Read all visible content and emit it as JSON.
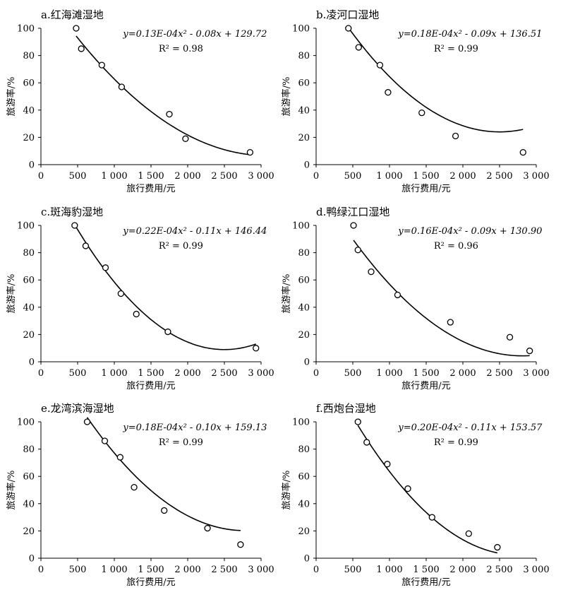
{
  "chart_data": [
    {
      "type": "scatter",
      "title": "a.红海滩湿地",
      "xlabel": "旅行费用/元",
      "ylabel": "旅游率/%",
      "xlim": [
        0,
        3000
      ],
      "ylim": [
        0,
        100
      ],
      "xticks": [
        "0",
        "500",
        "1 000",
        "1 500",
        "2 000",
        "2 500",
        "3 000"
      ],
      "yticks": [
        "0",
        "20",
        "40",
        "60",
        "80",
        "100"
      ],
      "points": [
        [
          480,
          100
        ],
        [
          550,
          85
        ],
        [
          830,
          73
        ],
        [
          1100,
          57
        ],
        [
          1750,
          37
        ],
        [
          1970,
          19
        ],
        [
          2850,
          9
        ]
      ],
      "trendline": {
        "a": 1.3e-05,
        "b": -0.08,
        "c": 129.72,
        "x_range": [
          480,
          2850
        ]
      },
      "equation": "y=0.13E-04x² - 0.08x + 129.72",
      "r2": "R² = 0.98"
    },
    {
      "type": "scatter",
      "title": "b.凌河口湿地",
      "xlabel": "旅行费用/元",
      "ylabel": "旅游率/%",
      "xlim": [
        0,
        3000
      ],
      "ylim": [
        0,
        100
      ],
      "xticks": [
        "0",
        "500",
        "1 000",
        "1 500",
        "2 000",
        "2 500",
        "3 000"
      ],
      "yticks": [
        "0",
        "20",
        "40",
        "60",
        "80",
        "100"
      ],
      "points": [
        [
          440,
          100
        ],
        [
          580,
          86
        ],
        [
          870,
          73
        ],
        [
          980,
          53
        ],
        [
          1440,
          38
        ],
        [
          1900,
          21
        ],
        [
          2820,
          9
        ]
      ],
      "trendline": {
        "a": 1.8e-05,
        "b": -0.09,
        "c": 136.51,
        "x_range": [
          440,
          2820
        ]
      },
      "equation": "y=0.18E-04x² - 0.09x + 136.51",
      "r2": "R² = 0.99"
    },
    {
      "type": "scatter",
      "title": "c.斑海豹湿地",
      "xlabel": "旅行费用/元",
      "ylabel": "旅游率/%",
      "xlim": [
        0,
        3000
      ],
      "ylim": [
        0,
        100
      ],
      "xticks": [
        "0",
        "500",
        "1 000",
        "1 500",
        "2 000",
        "2 500",
        "3 000"
      ],
      "yticks": [
        "0",
        "20",
        "40",
        "60",
        "80",
        "100"
      ],
      "points": [
        [
          460,
          100
        ],
        [
          610,
          85
        ],
        [
          880,
          69
        ],
        [
          1090,
          50
        ],
        [
          1300,
          35
        ],
        [
          1730,
          22
        ],
        [
          2930,
          10
        ]
      ],
      "trendline": {
        "a": 2.2e-05,
        "b": -0.11,
        "c": 146.44,
        "x_range": [
          460,
          2930
        ]
      },
      "equation": "y=0.22E-04x² - 0.11x + 146.44",
      "r2": "R² = 0.99"
    },
    {
      "type": "scatter",
      "title": "d.鸭绿江口湿地",
      "xlabel": "旅行费用/元",
      "ylabel": "旅游率/%",
      "xlim": [
        0,
        3000
      ],
      "ylim": [
        0,
        100
      ],
      "xticks": [
        "0",
        "500",
        "1 000",
        "1 500",
        "2 000",
        "2 500",
        "3 000"
      ],
      "yticks": [
        "0",
        "20",
        "40",
        "60",
        "80",
        "100"
      ],
      "points": [
        [
          510,
          100
        ],
        [
          570,
          82
        ],
        [
          750,
          66
        ],
        [
          1110,
          49
        ],
        [
          1830,
          29
        ],
        [
          2640,
          18
        ],
        [
          2910,
          8
        ]
      ],
      "trendline": {
        "a": 1.6e-05,
        "b": -0.09,
        "c": 130.9,
        "x_range": [
          510,
          2910
        ]
      },
      "equation": "y=0.16E-04x² - 0.09x + 130.90",
      "r2": "R² = 0.96"
    },
    {
      "type": "scatter",
      "title": "e.龙湾滨海湿地",
      "xlabel": "旅行费用/元",
      "ylabel": "旅游率/%",
      "xlim": [
        0,
        3000
      ],
      "ylim": [
        0,
        100
      ],
      "xticks": [
        "0",
        "500",
        "1 000",
        "1 500",
        "2 000",
        "2 500",
        "3 000"
      ],
      "yticks": [
        "0",
        "20",
        "40",
        "60",
        "80",
        "100"
      ],
      "points": [
        [
          630,
          100
        ],
        [
          870,
          86
        ],
        [
          1080,
          74
        ],
        [
          1270,
          52
        ],
        [
          1680,
          35
        ],
        [
          2270,
          22
        ],
        [
          2720,
          10
        ]
      ],
      "trendline": {
        "a": 1.8e-05,
        "b": -0.1,
        "c": 159.13,
        "x_range": [
          630,
          2720
        ]
      },
      "equation": "y=0.18E-04x² - 0.10x + 159.13",
      "r2": "R² = 0.99"
    },
    {
      "type": "scatter",
      "title": "f.西炮台湿地",
      "xlabel": "旅行费用/元",
      "ylabel": "旅游率/%",
      "xlim": [
        0,
        3000
      ],
      "ylim": [
        0,
        100
      ],
      "xticks": [
        "0",
        "500",
        "1 000",
        "1 500",
        "2 000",
        "2 500",
        "3 000"
      ],
      "yticks": [
        "0",
        "20",
        "40",
        "60",
        "80",
        "100"
      ],
      "points": [
        [
          570,
          100
        ],
        [
          690,
          85
        ],
        [
          970,
          69
        ],
        [
          1250,
          51
        ],
        [
          1580,
          30
        ],
        [
          2080,
          18
        ],
        [
          2470,
          8
        ]
      ],
      "trendline": {
        "a": 2e-05,
        "b": -0.11,
        "c": 153.57,
        "x_range": [
          570,
          2470
        ]
      },
      "equation": "y=0.20E-04x² - 0.11x + 153.57",
      "r2": "R² = 0.99"
    }
  ]
}
